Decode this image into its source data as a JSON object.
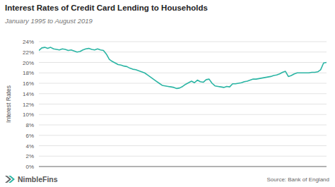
{
  "chart_data": {
    "type": "line",
    "title": "Interest Rates of Credit Card Lending to Households",
    "subtitle": "January 1995 to August 2019",
    "ylabel": "Interest Rates",
    "annotations": [
      "NimbleFins",
      "Source: Bank of England"
    ],
    "categories": [
      null,
      null,
      null,
      null,
      null,
      null,
      null,
      null,
      null,
      null,
      null,
      null,
      null,
      null,
      null,
      null,
      null,
      null,
      null,
      null,
      null,
      null,
      null,
      null,
      null,
      null,
      null,
      null,
      null,
      null,
      null,
      null,
      null,
      null,
      null,
      null,
      null,
      null,
      null,
      null,
      null,
      null,
      null,
      null,
      null,
      null,
      null,
      null,
      null,
      null,
      null,
      null,
      null,
      null,
      null,
      null,
      null,
      null,
      null,
      null,
      null,
      null,
      null,
      null,
      null,
      null,
      null,
      null,
      null,
      null,
      null,
      null,
      null,
      null,
      null,
      null,
      null,
      null,
      null,
      null,
      null,
      null,
      null,
      null,
      null,
      null,
      null,
      null,
      null,
      null,
      null,
      null,
      null,
      null,
      null,
      null,
      null,
      null,
      null
    ],
    "values": [
      22.3,
      22.8,
      22.9,
      22.7,
      22.9,
      22.6,
      22.5,
      22.4,
      22.6,
      22.5,
      22.3,
      22.4,
      22.2,
      22.0,
      22.1,
      22.4,
      22.6,
      22.7,
      22.5,
      22.4,
      22.6,
      22.4,
      22.3,
      21.6,
      20.6,
      20.2,
      19.9,
      19.6,
      19.5,
      19.3,
      19.2,
      18.9,
      18.7,
      18.6,
      18.4,
      18.2,
      18.0,
      17.6,
      17.2,
      16.8,
      16.4,
      16.0,
      15.6,
      15.5,
      15.4,
      15.3,
      15.2,
      15.0,
      15.1,
      15.4,
      15.8,
      16.1,
      16.4,
      16.1,
      16.6,
      16.3,
      16.2,
      16.7,
      16.8,
      16.0,
      15.5,
      15.4,
      15.3,
      15.2,
      15.4,
      15.3,
      15.9,
      15.9,
      16.0,
      16.1,
      16.3,
      16.4,
      16.6,
      16.8,
      16.8,
      16.9,
      17.0,
      17.1,
      17.2,
      17.3,
      17.5,
      17.6,
      17.8,
      18.1,
      18.3,
      17.3,
      17.5,
      17.8,
      18.0,
      18.0,
      18.0,
      18.0,
      18.0,
      18.1,
      18.1,
      18.2,
      18.6,
      19.9,
      20.0
    ],
    "color": "#2bb5a4",
    "ylim": [
      0,
      24
    ],
    "yticks": [
      {
        "value": 0,
        "label": "0%"
      },
      {
        "value": 2,
        "label": "2%"
      },
      {
        "value": 4,
        "label": "4%"
      },
      {
        "value": 6,
        "label": "6%"
      },
      {
        "value": 8,
        "label": "8%"
      },
      {
        "value": 10,
        "label": "10%"
      },
      {
        "value": 12,
        "label": "12%"
      },
      {
        "value": 14,
        "label": "14%"
      },
      {
        "value": 16,
        "label": "16%"
      },
      {
        "value": 18,
        "label": "18%"
      },
      {
        "value": 20,
        "label": "20%"
      },
      {
        "value": 22,
        "label": "22%"
      },
      {
        "value": 24,
        "label": "24%"
      }
    ],
    "grid": true,
    "tick_labels": "y"
  }
}
